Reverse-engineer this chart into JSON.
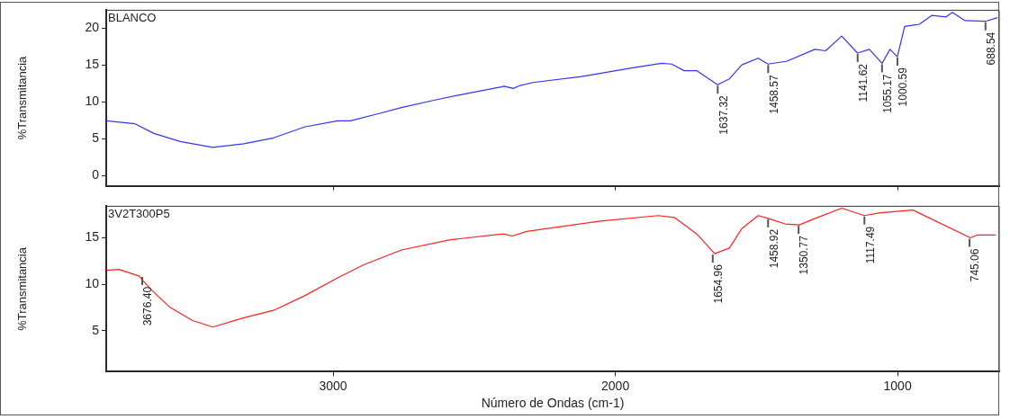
{
  "chart_data": [
    {
      "type": "line",
      "ylabel": "%Transmitancia",
      "xlim": [
        3804,
        640
      ],
      "xticks": [
        3000,
        2000,
        1000
      ],
      "ylim": [
        -1.4,
        22.4
      ],
      "yticks": [
        0,
        5,
        10,
        15,
        20
      ],
      "tick_labels": "y",
      "marker": "none",
      "series": [
        {
          "name": "BLANCO",
          "color": "#3333ff",
          "x": [
            3804,
            3702,
            3635,
            3542,
            3427,
            3316,
            3211,
            3099,
            2984,
            2939,
            2837,
            2758,
            2643,
            2528,
            2404,
            2394,
            2362,
            2337,
            2292,
            2120,
            1938,
            1836,
            1801,
            1756,
            1711,
            1638,
            1596,
            1552,
            1494,
            1459,
            1392,
            1293,
            1255,
            1198,
            1142,
            1100,
            1055,
            1027,
            1001,
            975,
            923,
            879,
            828,
            806,
            761,
            689,
            646
          ],
          "values": [
            7.4,
            7.0,
            5.7,
            4.6,
            3.8,
            4.3,
            5.1,
            6.6,
            7.4,
            7.4,
            8.4,
            9.2,
            10.2,
            11.1,
            12.0,
            12.1,
            11.8,
            12.2,
            12.6,
            13.4,
            14.6,
            15.2,
            15.1,
            14.2,
            14.2,
            12.3,
            13.1,
            15.0,
            15.9,
            15.1,
            15.5,
            17.1,
            16.9,
            18.9,
            16.6,
            17.1,
            15.2,
            17.1,
            16.1,
            20.2,
            20.5,
            21.7,
            21.5,
            22.1,
            21.0,
            20.9,
            21.4
          ]
        }
      ],
      "annotations": [
        {
          "text": "1637.32",
          "x": 1637.32,
          "y": 12.3
        },
        {
          "text": "1458.57",
          "x": 1458.57,
          "y": 15.1
        },
        {
          "text": "1141.62",
          "x": 1141.62,
          "y": 16.6
        },
        {
          "text": "1055.17",
          "x": 1055.17,
          "y": 15.2
        },
        {
          "text": "1000.59",
          "x": 1000.59,
          "y": 16.1
        },
        {
          "text": "688.54",
          "x": 688.54,
          "y": 20.9
        }
      ]
    },
    {
      "type": "line",
      "ylabel": "%Transmitancia",
      "xlabel": "Número de Ondas (cm-1)",
      "xlim": [
        3804,
        640
      ],
      "xticks": [
        3000,
        2000,
        1000
      ],
      "ylim": [
        0.6,
        18.4
      ],
      "yticks": [
        5,
        10,
        15
      ],
      "marker": "none",
      "series": [
        {
          "name": "3V2T300P5",
          "color": "#ff2020",
          "x": [
            3804,
            3759,
            3689,
            3644,
            3577,
            3498,
            3427,
            3316,
            3211,
            3099,
            2984,
            2892,
            2758,
            2585,
            2404,
            2394,
            2365,
            2314,
            2053,
            1848,
            1791,
            1711,
            1648,
            1596,
            1552,
            1494,
            1459,
            1399,
            1348,
            1300,
            1198,
            1118,
            1061,
            946,
            742,
            719,
            652
          ],
          "values": [
            11.5,
            11.6,
            10.9,
            9.4,
            7.5,
            6.1,
            5.4,
            6.4,
            7.2,
            8.8,
            10.7,
            12.1,
            13.7,
            14.8,
            15.4,
            15.4,
            15.2,
            15.7,
            16.8,
            17.4,
            17.2,
            15.4,
            13.3,
            13.9,
            16.0,
            17.4,
            17.1,
            16.5,
            16.4,
            17.0,
            18.2,
            17.4,
            17.7,
            18.0,
            15.0,
            15.3,
            15.3
          ]
        }
      ],
      "annotations": [
        {
          "text": "3676.40",
          "x": 3676.4,
          "y": 10.9
        },
        {
          "text": "1654.96",
          "x": 1654.96,
          "y": 13.3
        },
        {
          "text": "1458.92",
          "x": 1458.92,
          "y": 17.1
        },
        {
          "text": "1350.77",
          "x": 1350.77,
          "y": 16.4
        },
        {
          "text": "1117.49",
          "x": 1117.49,
          "y": 17.4
        },
        {
          "text": "745.06",
          "x": 745.06,
          "y": 15.0
        }
      ]
    }
  ]
}
